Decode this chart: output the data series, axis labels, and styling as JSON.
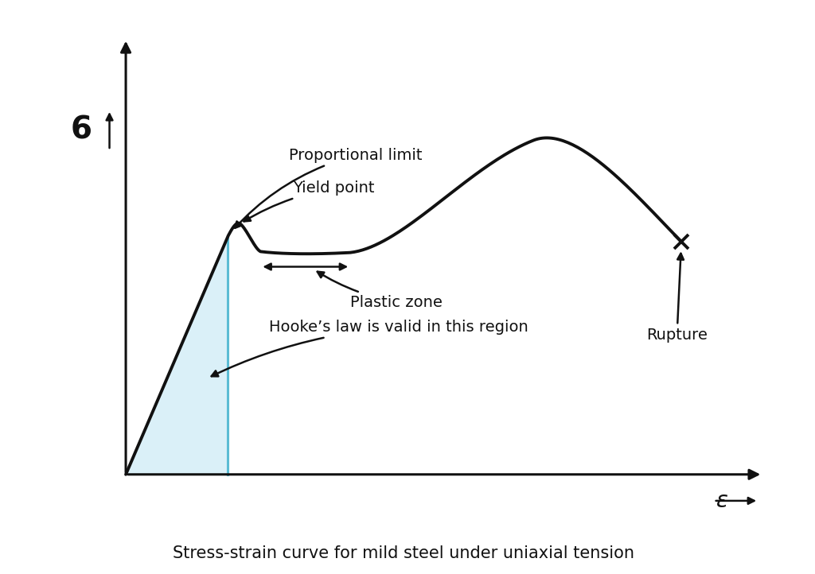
{
  "title": "Stress-strain curve for mild steel under uniaxial tension",
  "title_fontsize": 15,
  "background_color": "#ffffff",
  "curve_color": "#111111",
  "hooke_fill_color": "#daf0f8",
  "hooke_line_color": "#5bbcd4",
  "axis_color": "#111111",
  "annotation_color": "#111111",
  "sigma_label": "6",
  "epsilon_label": "ε",
  "proportional_limit_label": "Proportional limit",
  "yield_point_label": "Yield point",
  "plastic_zone_label": "Plastic zone",
  "hooke_label": "Hooke’s law is valid in this region",
  "rupture_label": "Rupture",
  "font_family": "sans-serif",
  "handwriting_font": "Comic Sans MS"
}
